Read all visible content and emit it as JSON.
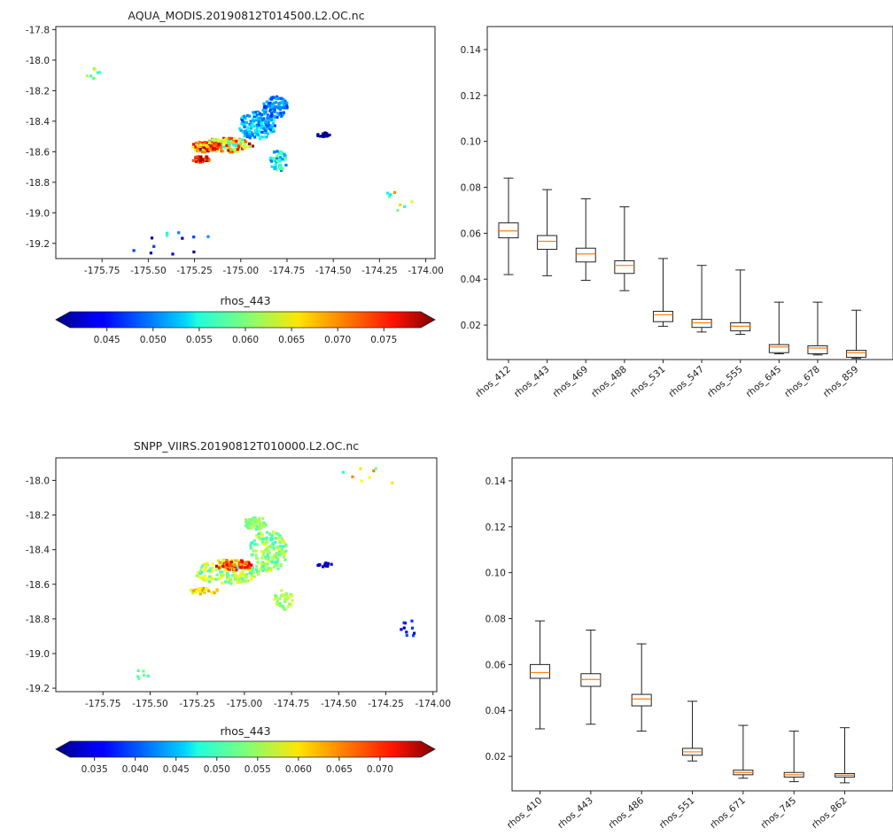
{
  "chart_data": [
    {
      "type": "scatter",
      "title": "AQUA_MODIS.20190812T014500.L2.OC.nc",
      "xlim": [
        -176.0,
        -173.95
      ],
      "ylim": [
        -19.3,
        -17.78
      ],
      "xticks": [
        "-175.75",
        "-175.50",
        "-175.25",
        "-175.00",
        "-174.75",
        "-174.50",
        "-174.25",
        "-174.00"
      ],
      "xtick_values": [
        -175.75,
        -175.5,
        -175.25,
        -175.0,
        -174.75,
        -174.5,
        -174.25,
        -174.0
      ],
      "yticks": [
        "-17.8",
        "-18.0",
        "-18.2",
        "-18.4",
        "-18.6",
        "-18.8",
        "-19.0",
        "-19.2"
      ],
      "ytick_values": [
        -17.8,
        -18.0,
        -18.2,
        -18.4,
        -18.6,
        -18.8,
        -19.0,
        -19.2
      ],
      "colormap": "jet",
      "colorbar": {
        "label": "rhos_443",
        "range": [
          0.041,
          0.079
        ],
        "ticks": [
          "0.045",
          "0.050",
          "0.055",
          "0.060",
          "0.065",
          "0.070",
          "0.075"
        ],
        "tick_values": [
          0.045,
          0.05,
          0.055,
          0.06,
          0.065,
          0.07,
          0.075
        ]
      },
      "clusters": [
        {
          "lon": -174.92,
          "lat": -18.42,
          "rlon": 0.1,
          "rlat": 0.09,
          "n": 160,
          "vmin": 0.048,
          "vmax": 0.056
        },
        {
          "lon": -174.82,
          "lat": -18.3,
          "rlon": 0.07,
          "rlat": 0.07,
          "n": 90,
          "vmin": 0.047,
          "vmax": 0.053
        },
        {
          "lon": -175.08,
          "lat": -18.55,
          "rlon": 0.14,
          "rlat": 0.05,
          "n": 140,
          "vmin": 0.055,
          "vmax": 0.078
        },
        {
          "lon": -175.2,
          "lat": -18.56,
          "rlon": 0.07,
          "rlat": 0.04,
          "n": 70,
          "vmin": 0.062,
          "vmax": 0.079
        },
        {
          "lon": -175.22,
          "lat": -18.64,
          "rlon": 0.05,
          "rlat": 0.02,
          "n": 40,
          "vmin": 0.068,
          "vmax": 0.079
        },
        {
          "lon": -174.8,
          "lat": -18.65,
          "rlon": 0.05,
          "rlat": 0.07,
          "n": 50,
          "vmin": 0.05,
          "vmax": 0.06
        },
        {
          "lon": -174.56,
          "lat": -18.48,
          "rlon": 0.04,
          "rlat": 0.015,
          "n": 18,
          "vmin": 0.041,
          "vmax": 0.043
        },
        {
          "lon": -175.3,
          "lat": -19.23,
          "rlon": 0.3,
          "rlat": 0.12,
          "n": 14,
          "vmin": 0.041,
          "vmax": 0.06
        },
        {
          "lon": -175.8,
          "lat": -18.1,
          "rlon": 0.04,
          "rlat": 0.06,
          "n": 8,
          "vmin": 0.055,
          "vmax": 0.066
        },
        {
          "lon": -174.15,
          "lat": -18.9,
          "rlon": 0.08,
          "rlat": 0.08,
          "n": 8,
          "vmin": 0.05,
          "vmax": 0.07
        }
      ]
    },
    {
      "type": "box",
      "categories": [
        "rhos_412",
        "rhos_443",
        "rhos_469",
        "rhos_488",
        "rhos_531",
        "rhos_547",
        "rhos_555",
        "rhos_645",
        "rhos_678",
        "rhos_859"
      ],
      "ylim": [
        0.005,
        0.15
      ],
      "yticks": [
        "0.02",
        "0.04",
        "0.06",
        "0.08",
        "0.10",
        "0.12",
        "0.14"
      ],
      "ytick_values": [
        0.02,
        0.04,
        0.06,
        0.08,
        0.1,
        0.12,
        0.14
      ],
      "boxes": [
        {
          "whislo": 0.042,
          "q1": 0.058,
          "med": 0.061,
          "q3": 0.0645,
          "whishi": 0.084
        },
        {
          "whislo": 0.0415,
          "q1": 0.053,
          "med": 0.0565,
          "q3": 0.059,
          "whishi": 0.079
        },
        {
          "whislo": 0.0395,
          "q1": 0.0475,
          "med": 0.051,
          "q3": 0.0535,
          "whishi": 0.075
        },
        {
          "whislo": 0.035,
          "q1": 0.0425,
          "med": 0.046,
          "q3": 0.048,
          "whishi": 0.0715
        },
        {
          "whislo": 0.0195,
          "q1": 0.0215,
          "med": 0.0245,
          "q3": 0.026,
          "whishi": 0.049
        },
        {
          "whislo": 0.017,
          "q1": 0.019,
          "med": 0.021,
          "q3": 0.0225,
          "whishi": 0.046
        },
        {
          "whislo": 0.016,
          "q1": 0.0175,
          "med": 0.0195,
          "q3": 0.021,
          "whishi": 0.044
        },
        {
          "whislo": 0.0075,
          "q1": 0.008,
          "med": 0.0105,
          "q3": 0.0115,
          "whishi": 0.03
        },
        {
          "whislo": 0.007,
          "q1": 0.0075,
          "med": 0.01,
          "q3": 0.011,
          "whishi": 0.03
        },
        {
          "whislo": 0.0055,
          "q1": 0.006,
          "med": 0.008,
          "q3": 0.009,
          "whishi": 0.0265
        }
      ]
    },
    {
      "type": "scatter",
      "title": "SNPP_VIIRS.20190812T010000.L2.OC.nc",
      "xlim": [
        -176.0,
        -173.98
      ],
      "ylim": [
        -19.22,
        -17.87
      ],
      "xticks": [
        "-175.75",
        "-175.50",
        "-175.25",
        "-175.00",
        "-174.75",
        "-174.50",
        "-174.25",
        "-174.00"
      ],
      "xtick_values": [
        -175.75,
        -175.5,
        -175.25,
        -175.0,
        -174.75,
        -174.5,
        -174.25,
        -174.0
      ],
      "yticks": [
        "-18.0",
        "-18.2",
        "-18.4",
        "-18.6",
        "-18.8",
        "-19.0",
        "-19.2"
      ],
      "ytick_values": [
        -18.0,
        -18.2,
        -18.4,
        -18.6,
        -18.8,
        -19.0,
        -19.2
      ],
      "colormap": "jet",
      "colorbar": {
        "label": "rhos_443",
        "range": [
          0.032,
          0.075
        ],
        "ticks": [
          "0.035",
          "0.040",
          "0.045",
          "0.050",
          "0.055",
          "0.060",
          "0.065",
          "0.070"
        ],
        "tick_values": [
          0.035,
          0.04,
          0.045,
          0.05,
          0.055,
          0.06,
          0.065,
          0.07
        ]
      },
      "clusters": [
        {
          "lon": -174.88,
          "lat": -18.4,
          "rlon": 0.1,
          "rlat": 0.12,
          "n": 160,
          "vmin": 0.05,
          "vmax": 0.058
        },
        {
          "lon": -174.95,
          "lat": -18.24,
          "rlon": 0.06,
          "rlat": 0.04,
          "n": 60,
          "vmin": 0.052,
          "vmax": 0.056
        },
        {
          "lon": -175.1,
          "lat": -18.52,
          "rlon": 0.17,
          "rlat": 0.07,
          "n": 170,
          "vmin": 0.05,
          "vmax": 0.06
        },
        {
          "lon": -175.06,
          "lat": -18.48,
          "rlon": 0.1,
          "rlat": 0.03,
          "n": 60,
          "vmin": 0.062,
          "vmax": 0.072
        },
        {
          "lon": -174.8,
          "lat": -18.68,
          "rlon": 0.05,
          "rlat": 0.06,
          "n": 40,
          "vmin": 0.052,
          "vmax": 0.058
        },
        {
          "lon": -175.22,
          "lat": -18.63,
          "rlon": 0.08,
          "rlat": 0.02,
          "n": 30,
          "vmin": 0.055,
          "vmax": 0.064
        },
        {
          "lon": -174.58,
          "lat": -18.48,
          "rlon": 0.04,
          "rlat": 0.012,
          "n": 14,
          "vmin": 0.034,
          "vmax": 0.036
        },
        {
          "lon": -174.13,
          "lat": -18.85,
          "rlon": 0.05,
          "rlat": 0.05,
          "n": 10,
          "vmin": 0.033,
          "vmax": 0.042
        },
        {
          "lon": -175.55,
          "lat": -19.12,
          "rlon": 0.06,
          "rlat": 0.04,
          "n": 6,
          "vmin": 0.05,
          "vmax": 0.055
        },
        {
          "lon": -174.32,
          "lat": -17.98,
          "rlon": 0.2,
          "rlat": 0.08,
          "n": 8,
          "vmin": 0.05,
          "vmax": 0.066
        }
      ]
    },
    {
      "type": "box",
      "categories": [
        "rhos_410",
        "rhos_443",
        "rhos_486",
        "rhos_551",
        "rhos_671",
        "rhos_745",
        "rhos_862"
      ],
      "ylim": [
        0.005,
        0.15
      ],
      "yticks": [
        "0.02",
        "0.04",
        "0.06",
        "0.08",
        "0.10",
        "0.12",
        "0.14"
      ],
      "ytick_values": [
        0.02,
        0.04,
        0.06,
        0.08,
        0.1,
        0.12,
        0.14
      ],
      "boxes": [
        {
          "whislo": 0.032,
          "q1": 0.054,
          "med": 0.0565,
          "q3": 0.06,
          "whishi": 0.079
        },
        {
          "whislo": 0.034,
          "q1": 0.0505,
          "med": 0.0535,
          "q3": 0.056,
          "whishi": 0.075
        },
        {
          "whislo": 0.031,
          "q1": 0.042,
          "med": 0.045,
          "q3": 0.047,
          "whishi": 0.069
        },
        {
          "whislo": 0.018,
          "q1": 0.0205,
          "med": 0.022,
          "q3": 0.0235,
          "whishi": 0.044
        },
        {
          "whislo": 0.0105,
          "q1": 0.012,
          "med": 0.013,
          "q3": 0.014,
          "whishi": 0.0335
        },
        {
          "whislo": 0.009,
          "q1": 0.011,
          "med": 0.012,
          "q3": 0.013,
          "whishi": 0.031
        },
        {
          "whislo": 0.0085,
          "q1": 0.011,
          "med": 0.0118,
          "q3": 0.0125,
          "whishi": 0.0325
        }
      ]
    }
  ]
}
